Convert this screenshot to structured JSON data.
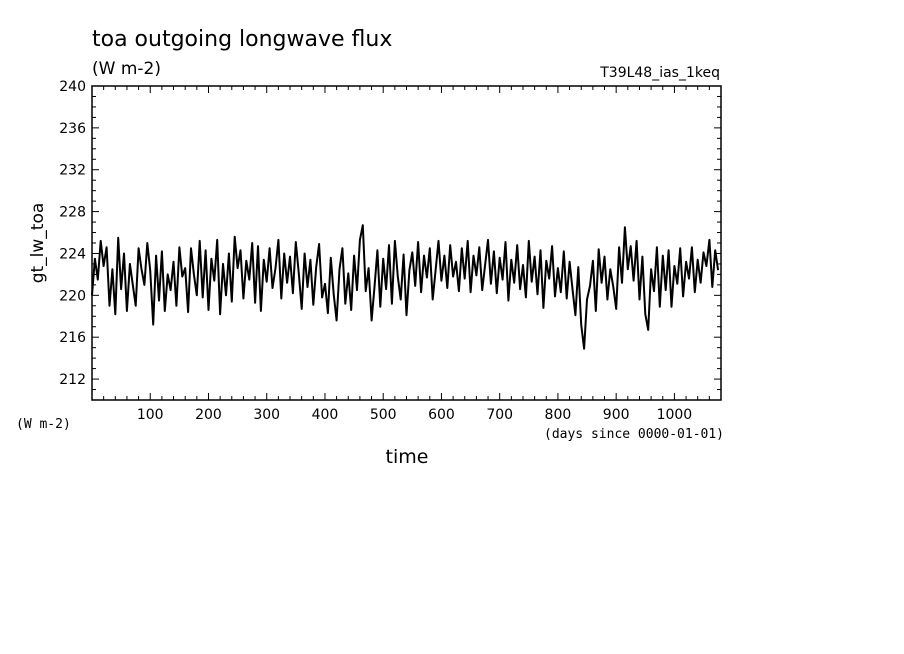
{
  "chart_data": {
    "type": "line",
    "title": "toa outgoing longwave flux",
    "subtitle": "(W m-2)",
    "run_label": "T39L48_ias_1keq",
    "ylabel": "gt_lw_toa",
    "yunits": "(W m-2)",
    "xlabel": "time",
    "xunits": "(days since 0000-01-01)",
    "xlim": [
      0,
      1080
    ],
    "ylim": [
      210,
      240
    ],
    "xticks": [
      100,
      200,
      300,
      400,
      500,
      600,
      700,
      800,
      900,
      1000
    ],
    "yticks": [
      212,
      216,
      220,
      224,
      228,
      232,
      236,
      240
    ],
    "grid": false,
    "line_color": "#000000",
    "series": [
      {
        "x": [
          0,
          5,
          10,
          15,
          20,
          25,
          30,
          35,
          40,
          45,
          50,
          55,
          60,
          65,
          70,
          75,
          80,
          85,
          90,
          95,
          100,
          105,
          110,
          115,
          120,
          125,
          130,
          135,
          140,
          145,
          150,
          155,
          160,
          165,
          170,
          175,
          180,
          185,
          190,
          195,
          200,
          205,
          210,
          215,
          220,
          225,
          230,
          235,
          240,
          245,
          250,
          255,
          260,
          265,
          270,
          275,
          280,
          285,
          290,
          295,
          300,
          305,
          310,
          315,
          320,
          325,
          330,
          335,
          340,
          345,
          350,
          355,
          360,
          365,
          370,
          375,
          380,
          385,
          390,
          395,
          400,
          405,
          410,
          415,
          420,
          425,
          430,
          435,
          440,
          445,
          450,
          455,
          460,
          465,
          470,
          475,
          480,
          485,
          490,
          495,
          500,
          505,
          510,
          515,
          520,
          525,
          530,
          535,
          540,
          545,
          550,
          555,
          560,
          565,
          570,
          575,
          580,
          585,
          590,
          595,
          600,
          605,
          610,
          615,
          620,
          625,
          630,
          635,
          640,
          645,
          650,
          655,
          660,
          665,
          670,
          675,
          680,
          685,
          690,
          695,
          700,
          705,
          710,
          715,
          720,
          725,
          730,
          735,
          740,
          745,
          750,
          755,
          760,
          765,
          770,
          775,
          780,
          785,
          790,
          795,
          800,
          805,
          810,
          815,
          820,
          825,
          830,
          835,
          840,
          845,
          850,
          855,
          860,
          865,
          870,
          875,
          880,
          885,
          890,
          895,
          900,
          905,
          910,
          915,
          920,
          925,
          930,
          935,
          940,
          945,
          950,
          955,
          960,
          965,
          970,
          975,
          980,
          985,
          990,
          995,
          1000,
          1005,
          1010,
          1015,
          1020,
          1025,
          1030,
          1035,
          1040,
          1045,
          1050,
          1055,
          1060,
          1065,
          1070,
          1075
        ],
        "values": [
          220,
          223.5,
          221.5,
          225.2,
          222.8,
          224.6,
          219,
          222.5,
          218.2,
          225.5,
          220.6,
          224,
          218.5,
          223,
          221,
          219,
          224.5,
          222.5,
          221,
          225,
          222.4,
          217.2,
          223.8,
          219.5,
          224.2,
          218.5,
          222,
          220.5,
          223.2,
          219,
          224.6,
          221.8,
          222.6,
          218.4,
          224.5,
          222,
          220,
          225.2,
          219.8,
          224.3,
          218.6,
          223.5,
          221.4,
          225.3,
          218.2,
          223,
          220,
          224,
          219.4,
          225.6,
          222.6,
          224.3,
          219.7,
          223.3,
          221.5,
          225,
          219.3,
          224.7,
          218.5,
          223.4,
          221.3,
          224.5,
          220.7,
          222.6,
          225.3,
          219.7,
          224,
          221.2,
          223.7,
          220.2,
          225.1,
          222.1,
          218.7,
          224,
          220.8,
          223.4,
          219.1,
          222.7,
          224.9,
          219.8,
          221.1,
          218.3,
          223.6,
          220.1,
          217.6,
          222.5,
          224.5,
          219.2,
          222.1,
          218.6,
          223.8,
          220.5,
          225.3,
          226.7,
          220.4,
          222.6,
          217.6,
          220.8,
          224.3,
          218.9,
          223.5,
          220.6,
          224.8,
          219.2,
          225.2,
          221.8,
          219.6,
          223.9,
          218.1,
          222.4,
          224.1,
          220.9,
          225.1,
          220.3,
          223.8,
          221.7,
          224.5,
          219.6,
          222.4,
          225.2,
          221.4,
          223.8,
          220.7,
          224.8,
          221.8,
          223.2,
          220.4,
          224.5,
          221.6,
          225.2,
          220.3,
          223.8,
          221.9,
          224.6,
          220.5,
          222.9,
          225.3,
          221.1,
          224.2,
          220.2,
          223.6,
          221.5,
          225.1,
          219.5,
          223.4,
          221.2,
          224.8,
          220.6,
          222.9,
          219.8,
          225.2,
          221.3,
          223.7,
          220.1,
          224.3,
          218.8,
          223.3,
          221.6,
          224.7,
          219.9,
          222.6,
          220.3,
          224.2,
          219.7,
          223.2,
          220.6,
          218.1,
          222.7,
          217.2,
          214.9,
          219.6,
          220.9,
          223.3,
          218.5,
          224.4,
          221.2,
          223.7,
          219.6,
          222.5,
          220.8,
          218.7,
          224.6,
          221.2,
          226.5,
          222.5,
          224.7,
          221.4,
          225.2,
          219.6,
          223.7,
          218.2,
          216.7,
          222.5,
          220.4,
          224.6,
          218.9,
          223.8,
          220.5,
          224.3,
          218.9,
          222.8,
          221.1,
          224.5,
          219.9,
          223.2,
          221.6,
          224.6,
          220.3,
          223.4,
          221.2,
          224.1,
          222.8,
          225.3,
          220.8,
          224.3,
          222.4
        ]
      }
    ]
  }
}
